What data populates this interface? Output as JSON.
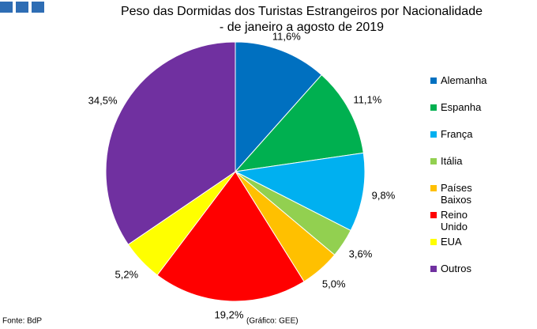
{
  "chart_data": {
    "type": "pie",
    "title": "Peso das Dormidas dos Turistas Estrangeiros por Nacionalidade",
    "subtitle": "- de janeiro a agosto de 2019",
    "categories": [
      "Alemanha",
      "Espanha",
      "França",
      "Itália",
      "Países Baixos",
      "Reino Unido",
      "EUA",
      "Outros"
    ],
    "values": [
      11.6,
      11.1,
      9.8,
      3.6,
      5.0,
      19.2,
      5.2,
      34.5
    ],
    "value_labels": [
      "11,6%",
      "11,1%",
      "9,8%",
      "3,6%",
      "5,0%",
      "19,2%",
      "5,2%",
      "34,5%"
    ],
    "colors": [
      "#0070c0",
      "#00b050",
      "#00b0f0",
      "#92d050",
      "#ffc000",
      "#ff0000",
      "#ffff00",
      "#7030a0"
    ],
    "legend": "right",
    "source": "Fonte: BdP",
    "credit": "(Gráfico: GEE)"
  }
}
